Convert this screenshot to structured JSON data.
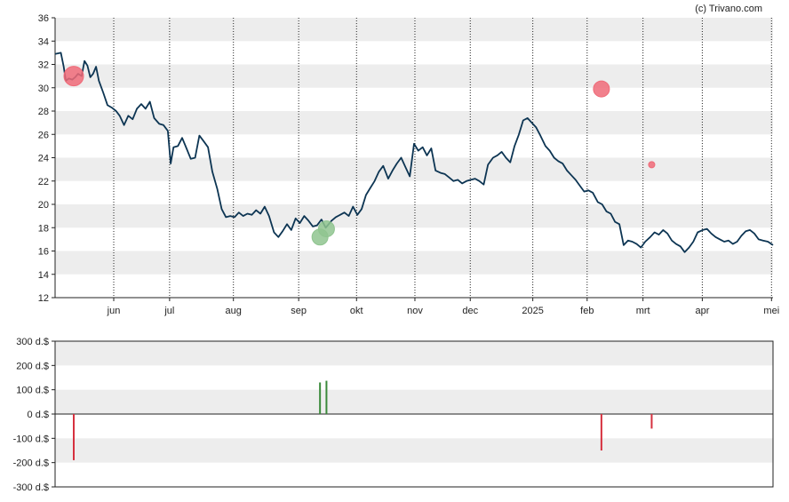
{
  "copyright": "(c) Trivano.com",
  "chart_data": [
    {
      "type": "line",
      "name": "price-chart",
      "ylim": [
        12,
        36
      ],
      "y_ticks": [
        12,
        14,
        16,
        18,
        20,
        22,
        24,
        26,
        28,
        30,
        32,
        34,
        36
      ],
      "x_range": [
        0,
        1
      ],
      "x_ticks": [
        {
          "label": "jun",
          "x": 0.0817
        },
        {
          "label": "jul",
          "x": 0.1595
        },
        {
          "label": "aug",
          "x": 0.2484
        },
        {
          "label": "sep",
          "x": 0.3393
        },
        {
          "label": "okt",
          "x": 0.4199
        },
        {
          "label": "nov",
          "x": 0.5012
        },
        {
          "label": "dec",
          "x": 0.5783
        },
        {
          "label": "2025",
          "x": 0.6654
        },
        {
          "label": "feb",
          "x": 0.7411
        },
        {
          "label": "mrt",
          "x": 0.8189
        },
        {
          "label": "apr",
          "x": 0.9015
        },
        {
          "label": "mei",
          "x": 0.9979
        }
      ],
      "grid": true,
      "series": [
        {
          "color": "#0d3553",
          "points": [
            [
              0.0,
              32.9
            ],
            [
              0.008,
              33.0
            ],
            [
              0.012,
              31.8
            ],
            [
              0.015,
              30.6
            ],
            [
              0.019,
              30.8
            ],
            [
              0.024,
              30.7
            ],
            [
              0.028,
              30.9
            ],
            [
              0.032,
              31.2
            ],
            [
              0.037,
              31.0
            ],
            [
              0.041,
              32.3
            ],
            [
              0.045,
              31.9
            ],
            [
              0.049,
              30.9
            ],
            [
              0.053,
              31.2
            ],
            [
              0.057,
              31.8
            ],
            [
              0.061,
              30.6
            ],
            [
              0.067,
              29.6
            ],
            [
              0.073,
              28.5
            ],
            [
              0.079,
              28.3
            ],
            [
              0.085,
              28.0
            ],
            [
              0.09,
              27.6
            ],
            [
              0.096,
              26.8
            ],
            [
              0.102,
              27.6
            ],
            [
              0.108,
              27.3
            ],
            [
              0.114,
              28.2
            ],
            [
              0.12,
              28.6
            ],
            [
              0.126,
              28.2
            ],
            [
              0.132,
              28.8
            ],
            [
              0.138,
              27.4
            ],
            [
              0.145,
              26.9
            ],
            [
              0.151,
              26.8
            ],
            [
              0.157,
              26.3
            ],
            [
              0.161,
              23.5
            ],
            [
              0.165,
              24.9
            ],
            [
              0.171,
              25.0
            ],
            [
              0.177,
              25.7
            ],
            [
              0.183,
              24.8
            ],
            [
              0.189,
              23.9
            ],
            [
              0.195,
              24.0
            ],
            [
              0.201,
              25.9
            ],
            [
              0.207,
              25.4
            ],
            [
              0.213,
              24.9
            ],
            [
              0.219,
              22.8
            ],
            [
              0.226,
              21.3
            ],
            [
              0.232,
              19.6
            ],
            [
              0.238,
              18.9
            ],
            [
              0.244,
              19.0
            ],
            [
              0.25,
              18.9
            ],
            [
              0.256,
              19.3
            ],
            [
              0.262,
              19.0
            ],
            [
              0.268,
              19.2
            ],
            [
              0.274,
              19.1
            ],
            [
              0.28,
              19.5
            ],
            [
              0.286,
              19.2
            ],
            [
              0.292,
              19.8
            ],
            [
              0.298,
              19.0
            ],
            [
              0.305,
              17.6
            ],
            [
              0.311,
              17.2
            ],
            [
              0.317,
              17.7
            ],
            [
              0.323,
              18.3
            ],
            [
              0.329,
              17.8
            ],
            [
              0.335,
              18.8
            ],
            [
              0.341,
              18.4
            ],
            [
              0.347,
              19.0
            ],
            [
              0.353,
              18.6
            ],
            [
              0.359,
              18.1
            ],
            [
              0.365,
              18.2
            ],
            [
              0.371,
              18.7
            ],
            [
              0.377,
              18.0
            ],
            [
              0.385,
              18.6
            ],
            [
              0.391,
              18.9
            ],
            [
              0.397,
              19.1
            ],
            [
              0.403,
              19.3
            ],
            [
              0.409,
              19.0
            ],
            [
              0.415,
              19.8
            ],
            [
              0.421,
              19.1
            ],
            [
              0.427,
              19.6
            ],
            [
              0.433,
              20.8
            ],
            [
              0.439,
              21.4
            ],
            [
              0.445,
              22.0
            ],
            [
              0.451,
              22.8
            ],
            [
              0.457,
              23.3
            ],
            [
              0.464,
              22.2
            ],
            [
              0.47,
              22.9
            ],
            [
              0.476,
              23.5
            ],
            [
              0.482,
              24.0
            ],
            [
              0.488,
              23.2
            ],
            [
              0.494,
              22.4
            ],
            [
              0.5,
              25.2
            ],
            [
              0.506,
              24.6
            ],
            [
              0.512,
              24.9
            ],
            [
              0.518,
              24.2
            ],
            [
              0.524,
              24.8
            ],
            [
              0.53,
              22.9
            ],
            [
              0.537,
              22.7
            ],
            [
              0.543,
              22.6
            ],
            [
              0.549,
              22.3
            ],
            [
              0.555,
              22.0
            ],
            [
              0.561,
              22.1
            ],
            [
              0.567,
              21.8
            ],
            [
              0.573,
              22.0
            ],
            [
              0.579,
              22.1
            ],
            [
              0.585,
              22.2
            ],
            [
              0.591,
              22.0
            ],
            [
              0.597,
              21.7
            ],
            [
              0.603,
              23.4
            ],
            [
              0.61,
              24.0
            ],
            [
              0.616,
              24.2
            ],
            [
              0.622,
              24.5
            ],
            [
              0.628,
              24.0
            ],
            [
              0.634,
              23.6
            ],
            [
              0.64,
              25.0
            ],
            [
              0.646,
              26.0
            ],
            [
              0.652,
              27.2
            ],
            [
              0.658,
              27.4
            ],
            [
              0.664,
              27.0
            ],
            [
              0.67,
              26.6
            ],
            [
              0.676,
              25.9
            ],
            [
              0.683,
              25.0
            ],
            [
              0.689,
              24.6
            ],
            [
              0.695,
              24.0
            ],
            [
              0.701,
              23.7
            ],
            [
              0.707,
              23.5
            ],
            [
              0.713,
              22.9
            ],
            [
              0.719,
              22.5
            ],
            [
              0.725,
              22.1
            ],
            [
              0.731,
              21.6
            ],
            [
              0.737,
              21.1
            ],
            [
              0.743,
              21.2
            ],
            [
              0.749,
              21.0
            ],
            [
              0.756,
              20.2
            ],
            [
              0.762,
              20.0
            ],
            [
              0.768,
              19.4
            ],
            [
              0.774,
              19.2
            ],
            [
              0.78,
              18.5
            ],
            [
              0.786,
              18.3
            ],
            [
              0.792,
              16.5
            ],
            [
              0.798,
              16.9
            ],
            [
              0.804,
              16.8
            ],
            [
              0.81,
              16.6
            ],
            [
              0.816,
              16.3
            ],
            [
              0.822,
              16.8
            ],
            [
              0.829,
              17.2
            ],
            [
              0.835,
              17.6
            ],
            [
              0.841,
              17.4
            ],
            [
              0.847,
              17.8
            ],
            [
              0.853,
              17.5
            ],
            [
              0.859,
              16.9
            ],
            [
              0.865,
              16.6
            ],
            [
              0.871,
              16.4
            ],
            [
              0.877,
              15.9
            ],
            [
              0.883,
              16.3
            ],
            [
              0.889,
              16.8
            ],
            [
              0.895,
              17.6
            ],
            [
              0.902,
              17.8
            ],
            [
              0.908,
              17.9
            ],
            [
              0.914,
              17.5
            ],
            [
              0.92,
              17.2
            ],
            [
              0.926,
              17.0
            ],
            [
              0.932,
              16.8
            ],
            [
              0.938,
              16.9
            ],
            [
              0.944,
              16.6
            ],
            [
              0.95,
              16.8
            ],
            [
              0.956,
              17.3
            ],
            [
              0.962,
              17.7
            ],
            [
              0.968,
              17.8
            ],
            [
              0.974,
              17.5
            ],
            [
              0.98,
              17.0
            ],
            [
              0.986,
              16.9
            ],
            [
              0.993,
              16.8
            ],
            [
              1.0,
              16.5
            ]
          ]
        }
      ],
      "markers": [
        {
          "x": 0.026,
          "y": 31.0,
          "size": "large",
          "color": "#ef6a78",
          "type": "sell"
        },
        {
          "x": 0.369,
          "y": 17.2,
          "size": "medium",
          "color": "#8fc48f",
          "type": "buy"
        },
        {
          "x": 0.378,
          "y": 17.9,
          "size": "medium",
          "color": "#8fc48f",
          "type": "buy"
        },
        {
          "x": 0.761,
          "y": 29.9,
          "size": "medium",
          "color": "#ef6a78",
          "type": "sell"
        },
        {
          "x": 0.831,
          "y": 23.4,
          "size": "small",
          "color": "#ef6a78",
          "type": "sell"
        }
      ]
    },
    {
      "type": "bar",
      "name": "transactions-chart",
      "ylim": [
        -300,
        300
      ],
      "y_ticks": [
        {
          "value": 300,
          "label": "300 d.$"
        },
        {
          "value": 200,
          "label": "200 d.$"
        },
        {
          "value": 100,
          "label": "100 d.$"
        },
        {
          "value": 0,
          "label": "0 d.$"
        },
        {
          "value": -100,
          "label": "-100 d.$"
        },
        {
          "value": -200,
          "label": "-200 d.$"
        },
        {
          "value": -300,
          "label": "-300 d.$"
        }
      ],
      "grid": true,
      "bars": [
        {
          "x": 0.026,
          "value": -190,
          "color": "#d6313f"
        },
        {
          "x": 0.369,
          "value": 130,
          "color": "#3a8a3a"
        },
        {
          "x": 0.378,
          "value": 137,
          "color": "#3a8a3a"
        },
        {
          "x": 0.761,
          "value": -150,
          "color": "#d6313f"
        },
        {
          "x": 0.831,
          "value": -60,
          "color": "#d6313f"
        }
      ]
    }
  ]
}
